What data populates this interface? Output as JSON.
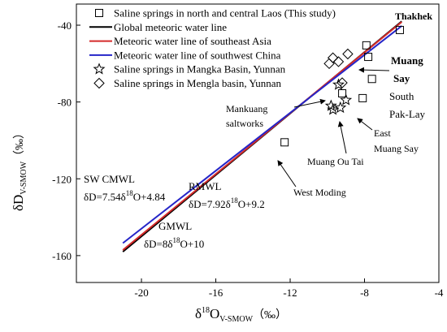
{
  "chart_data": {
    "type": "scatter",
    "xlabel": {
      "main": "δ",
      "sup": "18",
      "base": "O",
      "sub": "V-SMOW",
      "unit": "（‰）"
    },
    "ylabel": {
      "main": "δD",
      "sub": "V-SMOW",
      "unit": "（‰）"
    },
    "xlim": [
      -23.5,
      -4
    ],
    "ylim": [
      -174,
      -29
    ],
    "xticks": [
      -20,
      -16,
      -12,
      -8,
      -4
    ],
    "yticks": [
      -160,
      -120,
      -80,
      -40
    ],
    "legend_position": "top-left",
    "legend": [
      {
        "label": "Saline springs in north and central Laos (This study)",
        "marker": "square"
      },
      {
        "label": "Global meteoric water line",
        "line_color": "#000000"
      },
      {
        "label": "Meteoric water line of southeast Asia",
        "line_color": "#d42a2a"
      },
      {
        "label": "Meteoric water line of southwest China",
        "line_color": "#2525c8"
      },
      {
        "label": "Saline springs in Mangka Basin, Yunnan",
        "marker": "star"
      },
      {
        "label": "Saline springs in Mengla basin, Yunnan",
        "marker": "diamond"
      }
    ],
    "lines": [
      {
        "name": "Global meteoric water line",
        "slope": 8,
        "intercept": 10,
        "x_range": [
          -21,
          -6
        ],
        "color": "#000000"
      },
      {
        "name": "Meteoric water line of southeast Asia",
        "slope": 7.92,
        "intercept": 9.2,
        "x_range": [
          -21,
          -6
        ],
        "color": "#d42a2a"
      },
      {
        "name": "Meteoric water line of southwest China",
        "slope": 7.54,
        "intercept": 4.84,
        "x_range": [
          -21,
          -6
        ],
        "color": "#2525c8"
      }
    ],
    "series": [
      {
        "name": "Saline springs in north and central Laos (This study)",
        "marker": "square",
        "points": [
          {
            "x": -6.1,
            "y": -42.5
          },
          {
            "x": -7.9,
            "y": -50.5
          },
          {
            "x": -7.8,
            "y": -56.5
          },
          {
            "x": -7.6,
            "y": -68
          },
          {
            "x": -8.1,
            "y": -78
          },
          {
            "x": -9.2,
            "y": -75.5
          },
          {
            "x": -12.3,
            "y": -101
          }
        ]
      },
      {
        "name": "Saline springs in Mangka Basin, Yunnan",
        "marker": "star",
        "points": [
          {
            "x": -9.8,
            "y": -82
          },
          {
            "x": -9.7,
            "y": -84
          },
          {
            "x": -9.3,
            "y": -83
          },
          {
            "x": -9.4,
            "y": -71
          },
          {
            "x": -9.0,
            "y": -79
          }
        ]
      },
      {
        "name": "Saline springs in Mengla basin, Yunnan",
        "marker": "diamond",
        "points": [
          {
            "x": -9.9,
            "y": -60
          },
          {
            "x": -9.7,
            "y": -57
          },
          {
            "x": -9.4,
            "y": -59
          },
          {
            "x": -9.2,
            "y": -70
          },
          {
            "x": -8.9,
            "y": -55
          }
        ]
      }
    ],
    "annotations": [
      {
        "id": "thakhek",
        "text": "Thakhek"
      },
      {
        "id": "muang-say",
        "text": "Muang\nSay"
      },
      {
        "id": "south-pak-lay",
        "text": "South\nPak-Lay"
      },
      {
        "id": "mankuang",
        "text": "Mankuang\nsaltworks"
      },
      {
        "id": "east-muang-say",
        "text": "East\nMuang Say"
      },
      {
        "id": "muang-ou-tai",
        "text": "Muang Ou Tai"
      },
      {
        "id": "west-moding",
        "text": "West Moding"
      }
    ],
    "equations": [
      {
        "id": "sw-cmwl",
        "name": "SW CMWL",
        "eq": "δD=7.54δ18O+4.84"
      },
      {
        "id": "rmwl",
        "name": "RMWL",
        "eq": "δD=7.92δ18O+9.2"
      },
      {
        "id": "gmwl",
        "name": "GMWL",
        "eq": "δD=8δ18O+10"
      }
    ]
  }
}
